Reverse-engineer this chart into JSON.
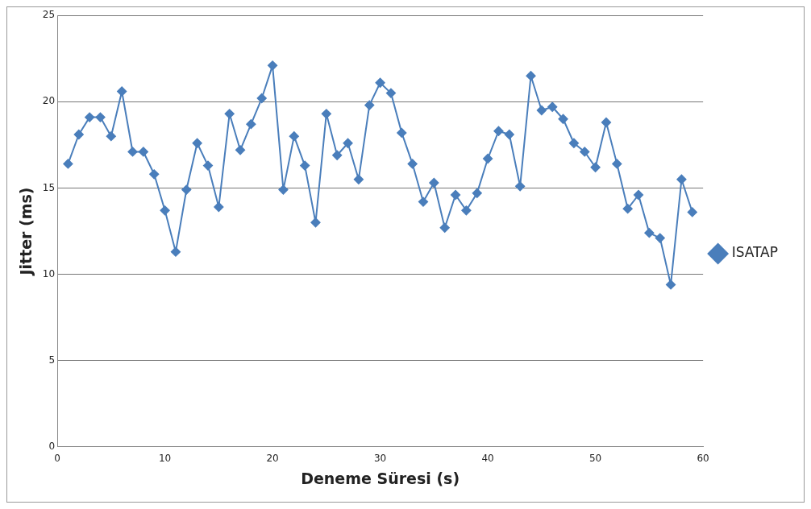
{
  "chart_data": {
    "type": "line",
    "xlabel": "Deneme Süresi (s)",
    "ylabel": "Jitter (ms)",
    "x": [
      1,
      2,
      3,
      4,
      5,
      6,
      7,
      8,
      9,
      10,
      11,
      12,
      13,
      14,
      15,
      16,
      17,
      18,
      19,
      20,
      21,
      22,
      23,
      24,
      25,
      26,
      27,
      28,
      29,
      30,
      31,
      32,
      33,
      34,
      35,
      36,
      37,
      38,
      39,
      40,
      41,
      42,
      43,
      44,
      45,
      46,
      47,
      48,
      49,
      50,
      51,
      52,
      53,
      54,
      55,
      56,
      57,
      58,
      59
    ],
    "series": [
      {
        "name": "ISATAP",
        "color": "#4a7ebb",
        "values": [
          16.4,
          18.1,
          19.1,
          19.1,
          18.0,
          20.6,
          17.1,
          17.1,
          15.8,
          13.7,
          11.3,
          14.9,
          17.6,
          16.3,
          13.9,
          19.3,
          17.2,
          18.7,
          20.2,
          22.1,
          14.9,
          18.0,
          16.3,
          13.0,
          19.3,
          16.9,
          17.6,
          15.5,
          19.8,
          21.1,
          20.5,
          18.2,
          16.4,
          14.2,
          15.3,
          12.7,
          14.6,
          13.7,
          14.7,
          16.7,
          18.3,
          18.1,
          15.1,
          21.5,
          19.5,
          19.7,
          19.0,
          17.6,
          17.1,
          16.2,
          18.8,
          16.4,
          13.8,
          14.6,
          12.4,
          12.1,
          9.4,
          15.5,
          13.6
        ]
      }
    ],
    "xlim": [
      0,
      60
    ],
    "xticks": [
      0,
      10,
      20,
      30,
      40,
      50,
      60
    ],
    "ylim": [
      0,
      25
    ],
    "yticks": [
      0,
      5,
      10,
      15,
      20,
      25
    ],
    "grid": "y",
    "legend": "right",
    "marker": "diamond",
    "line_style": "solid"
  }
}
